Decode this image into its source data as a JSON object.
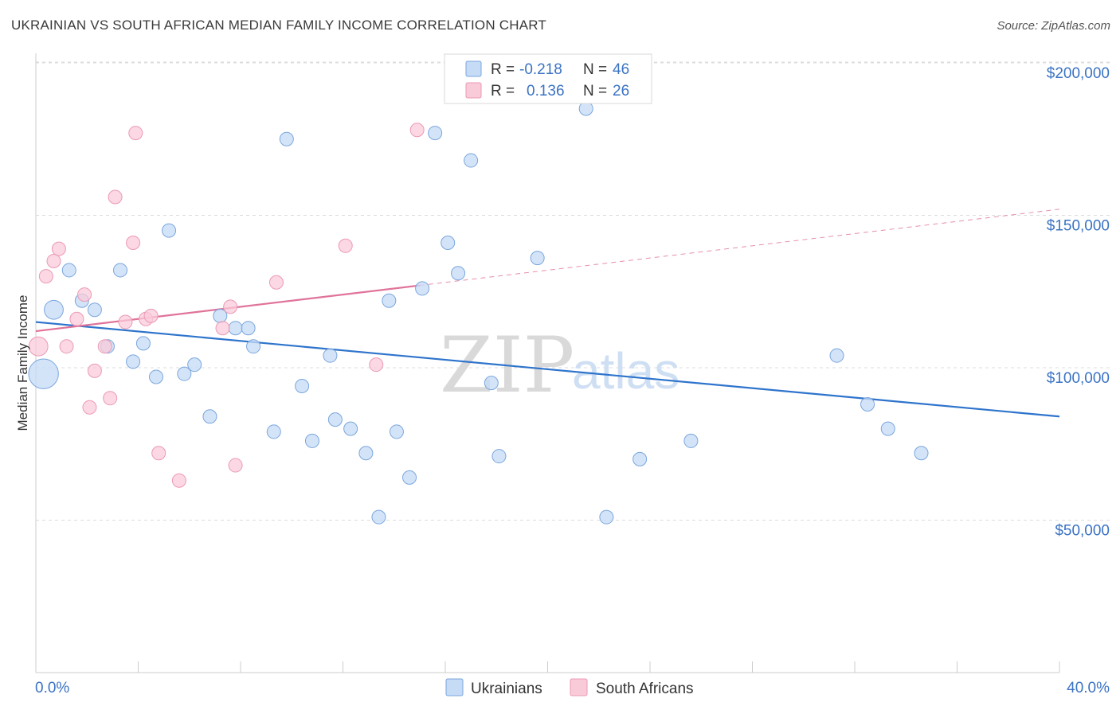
{
  "title": "UKRAINIAN VS SOUTH AFRICAN MEDIAN FAMILY INCOME CORRELATION CHART",
  "source": "Source: ZipAtlas.com",
  "watermark": {
    "zip": "ZIP",
    "atlas": "atlas"
  },
  "colors": {
    "blue_fill": "#c6dbf5",
    "blue_stroke": "#7aa6de",
    "blue_line": "#2e74cc",
    "pink_fill": "#f9cbd9",
    "pink_stroke": "#ec9ab4",
    "pink_line": "#e0739a",
    "grid": "#dcdcdc",
    "label": "#3b73c4"
  },
  "legend": {
    "rows": [
      {
        "r_label": "R =",
        "r_value": "-0.218",
        "n_label": "N =",
        "n_value": "46"
      },
      {
        "r_label": "R =",
        "r_value": "0.136",
        "n_label": "N =",
        "n_value": "26"
      }
    ]
  },
  "chart_data": {
    "type": "scatter",
    "title": "UKRAINIAN VS SOUTH AFRICAN MEDIAN FAMILY INCOME CORRELATION CHART",
    "xlabel": "",
    "ylabel": "Median Family Income",
    "xlim": [
      0,
      40
    ],
    "ylim": [
      0,
      205000
    ],
    "x_tick_labels": [
      "0.0%",
      "40.0%"
    ],
    "y_ticks": [
      50000,
      100000,
      150000,
      200000
    ],
    "y_tick_labels": [
      "$50,000",
      "$100,000",
      "$150,000",
      "$200,000"
    ],
    "series": [
      {
        "name": "Ukrainians",
        "r": -0.218,
        "n": 46,
        "trend": {
          "x": [
            0,
            40
          ],
          "y": [
            115000,
            84000
          ]
        },
        "points": [
          {
            "x": 0.3,
            "y": 98000,
            "s": 2.2
          },
          {
            "x": 0.7,
            "y": 119000,
            "s": 1.4
          },
          {
            "x": 1.3,
            "y": 132000,
            "s": 1
          },
          {
            "x": 1.8,
            "y": 122000,
            "s": 1
          },
          {
            "x": 2.3,
            "y": 119000,
            "s": 1
          },
          {
            "x": 2.8,
            "y": 107000,
            "s": 1
          },
          {
            "x": 3.3,
            "y": 132000,
            "s": 1
          },
          {
            "x": 3.8,
            "y": 102000,
            "s": 1
          },
          {
            "x": 4.2,
            "y": 108000,
            "s": 1
          },
          {
            "x": 4.7,
            "y": 97000,
            "s": 1
          },
          {
            "x": 5.2,
            "y": 145000,
            "s": 1
          },
          {
            "x": 5.8,
            "y": 98000,
            "s": 1
          },
          {
            "x": 6.2,
            "y": 101000,
            "s": 1
          },
          {
            "x": 6.8,
            "y": 84000,
            "s": 1
          },
          {
            "x": 7.2,
            "y": 117000,
            "s": 1
          },
          {
            "x": 7.8,
            "y": 113000,
            "s": 1
          },
          {
            "x": 8.3,
            "y": 113000,
            "s": 1
          },
          {
            "x": 8.5,
            "y": 107000,
            "s": 1
          },
          {
            "x": 9.3,
            "y": 79000,
            "s": 1
          },
          {
            "x": 9.8,
            "y": 175000,
            "s": 1
          },
          {
            "x": 10.4,
            "y": 94000,
            "s": 1
          },
          {
            "x": 10.8,
            "y": 76000,
            "s": 1
          },
          {
            "x": 11.5,
            "y": 104000,
            "s": 1
          },
          {
            "x": 11.7,
            "y": 83000,
            "s": 1
          },
          {
            "x": 12.3,
            "y": 80000,
            "s": 1
          },
          {
            "x": 12.9,
            "y": 72000,
            "s": 1
          },
          {
            "x": 13.4,
            "y": 51000,
            "s": 1
          },
          {
            "x": 13.8,
            "y": 122000,
            "s": 1
          },
          {
            "x": 14.1,
            "y": 79000,
            "s": 1
          },
          {
            "x": 14.6,
            "y": 64000,
            "s": 1
          },
          {
            "x": 15.1,
            "y": 126000,
            "s": 1
          },
          {
            "x": 15.6,
            "y": 177000,
            "s": 1
          },
          {
            "x": 16.1,
            "y": 141000,
            "s": 1
          },
          {
            "x": 16.5,
            "y": 131000,
            "s": 1
          },
          {
            "x": 17.0,
            "y": 168000,
            "s": 1
          },
          {
            "x": 17.8,
            "y": 95000,
            "s": 1
          },
          {
            "x": 18.1,
            "y": 71000,
            "s": 1
          },
          {
            "x": 19.6,
            "y": 136000,
            "s": 1
          },
          {
            "x": 21.5,
            "y": 185000,
            "s": 1
          },
          {
            "x": 22.3,
            "y": 51000,
            "s": 1
          },
          {
            "x": 23.6,
            "y": 70000,
            "s": 1
          },
          {
            "x": 25.6,
            "y": 76000,
            "s": 1
          },
          {
            "x": 31.3,
            "y": 104000,
            "s": 1
          },
          {
            "x": 32.5,
            "y": 88000,
            "s": 1
          },
          {
            "x": 33.3,
            "y": 80000,
            "s": 1
          },
          {
            "x": 34.6,
            "y": 72000,
            "s": 1
          }
        ]
      },
      {
        "name": "South Africans",
        "r": 0.136,
        "n": 26,
        "trend": {
          "x": [
            0,
            15
          ],
          "y": [
            112000,
            127000
          ]
        },
        "trend_dashed": {
          "x": [
            15,
            40
          ],
          "y": [
            127000,
            152000
          ]
        },
        "points": [
          {
            "x": 0.1,
            "y": 107000,
            "s": 1.4
          },
          {
            "x": 0.4,
            "y": 130000,
            "s": 1
          },
          {
            "x": 0.7,
            "y": 135000,
            "s": 1
          },
          {
            "x": 0.9,
            "y": 139000,
            "s": 1
          },
          {
            "x": 1.2,
            "y": 107000,
            "s": 1
          },
          {
            "x": 1.6,
            "y": 116000,
            "s": 1
          },
          {
            "x": 1.9,
            "y": 124000,
            "s": 1
          },
          {
            "x": 2.1,
            "y": 87000,
            "s": 1
          },
          {
            "x": 2.3,
            "y": 99000,
            "s": 1
          },
          {
            "x": 2.7,
            "y": 107000,
            "s": 1
          },
          {
            "x": 2.9,
            "y": 90000,
            "s": 1
          },
          {
            "x": 3.1,
            "y": 156000,
            "s": 1
          },
          {
            "x": 3.5,
            "y": 115000,
            "s": 1
          },
          {
            "x": 3.8,
            "y": 141000,
            "s": 1
          },
          {
            "x": 3.9,
            "y": 177000,
            "s": 1
          },
          {
            "x": 4.3,
            "y": 116000,
            "s": 1
          },
          {
            "x": 4.5,
            "y": 117000,
            "s": 1
          },
          {
            "x": 4.8,
            "y": 72000,
            "s": 1
          },
          {
            "x": 5.6,
            "y": 63000,
            "s": 1
          },
          {
            "x": 7.3,
            "y": 113000,
            "s": 1
          },
          {
            "x": 7.6,
            "y": 120000,
            "s": 1
          },
          {
            "x": 7.8,
            "y": 68000,
            "s": 1
          },
          {
            "x": 9.4,
            "y": 128000,
            "s": 1
          },
          {
            "x": 12.1,
            "y": 140000,
            "s": 1
          },
          {
            "x": 13.3,
            "y": 101000,
            "s": 1
          },
          {
            "x": 14.9,
            "y": 178000,
            "s": 1
          }
        ]
      }
    ],
    "legend": [
      "Ukrainians",
      "South Africans"
    ],
    "legend_placement": "top-center and bottom"
  }
}
